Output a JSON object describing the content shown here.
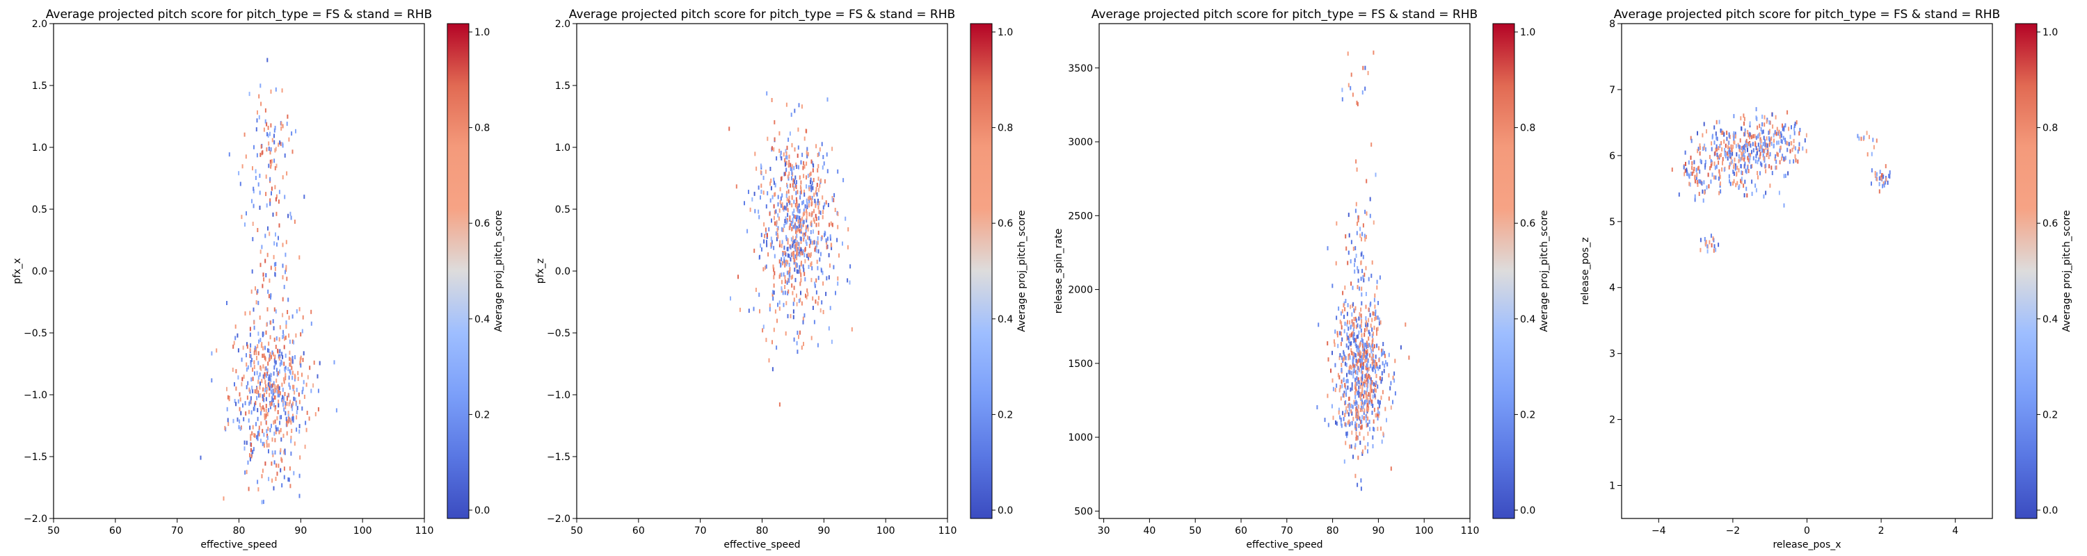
{
  "chart_data": [
    {
      "type": "heatmap",
      "title": "Average projected pitch score for pitch_type = FS & stand = RHB",
      "xlabel": "effective_speed",
      "ylabel": "pfx_x",
      "xlim": [
        50,
        110
      ],
      "ylim": [
        -2.0,
        2.0
      ],
      "xticks": [
        50,
        60,
        70,
        80,
        90,
        100,
        110
      ],
      "xtick_labels": [
        "50",
        "60",
        "70",
        "80",
        "90",
        "100",
        "110"
      ],
      "yticks": [
        -2.0,
        -1.5,
        -1.0,
        -0.5,
        0.0,
        0.5,
        1.0,
        1.5,
        2.0
      ],
      "ytick_labels": [
        "−2.0",
        "−1.5",
        "−1.0",
        "−0.5",
        "0.0",
        "0.5",
        "1.0",
        "1.5",
        "2.0"
      ],
      "grid": false,
      "colorbar": {
        "label": "Average proj_pitch_score",
        "range": [
          0.0,
          1.0
        ],
        "ticks": [
          0.0,
          0.2,
          0.4,
          0.6,
          0.8,
          1.0
        ],
        "tick_labels": [
          "0.0",
          "0.2",
          "0.4",
          "0.6",
          "0.8",
          "1.0"
        ],
        "colormap": "coolwarm"
      },
      "clusters": [
        {
          "cx": 85,
          "cy": -1.0,
          "sx": 3.3,
          "sy": 0.33,
          "n": 520
        },
        {
          "cx": 85,
          "cy": 0.1,
          "sx": 2.5,
          "sy": 0.5,
          "n": 110
        },
        {
          "cx": 84.5,
          "cy": 1.05,
          "sx": 1.5,
          "sy": 0.25,
          "n": 70
        }
      ]
    },
    {
      "type": "heatmap",
      "title": "Average projected pitch score for pitch_type = FS & stand = RHB",
      "xlabel": "effective_speed",
      "ylabel": "pfx_z",
      "xlim": [
        50,
        110
      ],
      "ylim": [
        -2.0,
        2.0
      ],
      "xticks": [
        50,
        60,
        70,
        80,
        90,
        100,
        110
      ],
      "xtick_labels": [
        "50",
        "60",
        "70",
        "80",
        "90",
        "100",
        "110"
      ],
      "yticks": [
        -2.0,
        -1.5,
        -1.0,
        -0.5,
        0.0,
        0.5,
        1.0,
        1.5,
        2.0
      ],
      "ytick_labels": [
        "−2.0",
        "−1.5",
        "−1.0",
        "−0.5",
        "0.0",
        "0.5",
        "1.0",
        "1.5",
        "2.0"
      ],
      "grid": false,
      "colorbar": {
        "label": "Average proj_pitch_score",
        "range": [
          0.0,
          1.0
        ],
        "ticks": [
          0.0,
          0.2,
          0.4,
          0.6,
          0.8,
          1.0
        ],
        "tick_labels": [
          "0.0",
          "0.2",
          "0.4",
          "0.6",
          "0.8",
          "1.0"
        ],
        "colormap": "coolwarm"
      },
      "clusters": [
        {
          "cx": 85.5,
          "cy": 0.35,
          "sx": 3.2,
          "sy": 0.38,
          "n": 700
        }
      ]
    },
    {
      "type": "heatmap",
      "title": "Average projected pitch score for pitch_type = FS & stand = RHB",
      "xlabel": "effective_speed",
      "ylabel": "release_spin_rate",
      "xlim": [
        29,
        110
      ],
      "ylim": [
        450,
        3800
      ],
      "xticks": [
        30,
        40,
        50,
        60,
        70,
        80,
        90,
        100,
        110
      ],
      "xtick_labels": [
        "30",
        "40",
        "50",
        "60",
        "70",
        "80",
        "90",
        "100",
        "110"
      ],
      "yticks": [
        500,
        1000,
        1500,
        2000,
        2500,
        3000,
        3500
      ],
      "ytick_labels": [
        "500",
        "1000",
        "1500",
        "2000",
        "2500",
        "3000",
        "3500"
      ],
      "grid": false,
      "colorbar": {
        "label": "Average proj_pitch_score",
        "range": [
          0.0,
          1.0
        ],
        "ticks": [
          0.0,
          0.2,
          0.4,
          0.6,
          0.8,
          1.0
        ],
        "tick_labels": [
          "0.0",
          "0.2",
          "0.4",
          "0.6",
          "0.8",
          "1.0"
        ],
        "colormap": "coolwarm"
      },
      "clusters": [
        {
          "cx": 86,
          "cy": 1450,
          "sx": 3.0,
          "sy": 260,
          "n": 650
        },
        {
          "cx": 85.5,
          "cy": 2300,
          "sx": 2.0,
          "sy": 250,
          "n": 60
        },
        {
          "cx": 85,
          "cy": 3400,
          "sx": 2.5,
          "sy": 150,
          "n": 15
        }
      ]
    },
    {
      "type": "heatmap",
      "title": "Average projected pitch score for pitch_type = FS & stand = RHB",
      "xlabel": "release_pos_x",
      "ylabel": "release_pos_z",
      "xlim": [
        -5.0,
        5.0
      ],
      "ylim": [
        0.5,
        8.0
      ],
      "xticks": [
        -4,
        -2,
        0,
        2,
        4
      ],
      "xtick_labels": [
        "−4",
        "−2",
        "0",
        "2",
        "4"
      ],
      "yticks": [
        1,
        2,
        3,
        4,
        5,
        6,
        7,
        8
      ],
      "ytick_labels": [
        "1",
        "2",
        "3",
        "4",
        "5",
        "6",
        "7",
        "8"
      ],
      "grid": false,
      "colorbar": {
        "label": "Average proj_pitch_score",
        "range": [
          0.0,
          1.0
        ],
        "ticks": [
          0.0,
          0.2,
          0.4,
          0.6,
          0.8,
          1.0
        ],
        "tick_labels": [
          "0.0",
          "0.2",
          "0.4",
          "0.6",
          "0.8",
          "1.0"
        ],
        "colormap": "coolwarm"
      },
      "clusters": [
        {
          "cx": -1.9,
          "cy": 6.0,
          "sx": 0.5,
          "sy": 0.25,
          "n": 260
        },
        {
          "cx": -0.9,
          "cy": 6.2,
          "sx": 0.4,
          "sy": 0.22,
          "n": 150
        },
        {
          "cx": -2.9,
          "cy": 5.75,
          "sx": 0.25,
          "sy": 0.2,
          "n": 70
        },
        {
          "cx": -2.7,
          "cy": 4.65,
          "sx": 0.15,
          "sy": 0.07,
          "n": 18
        },
        {
          "cx": 2.0,
          "cy": 5.65,
          "sx": 0.15,
          "sy": 0.08,
          "n": 30
        },
        {
          "cx": 1.6,
          "cy": 6.2,
          "sx": 0.15,
          "sy": 0.1,
          "n": 12
        }
      ]
    }
  ]
}
